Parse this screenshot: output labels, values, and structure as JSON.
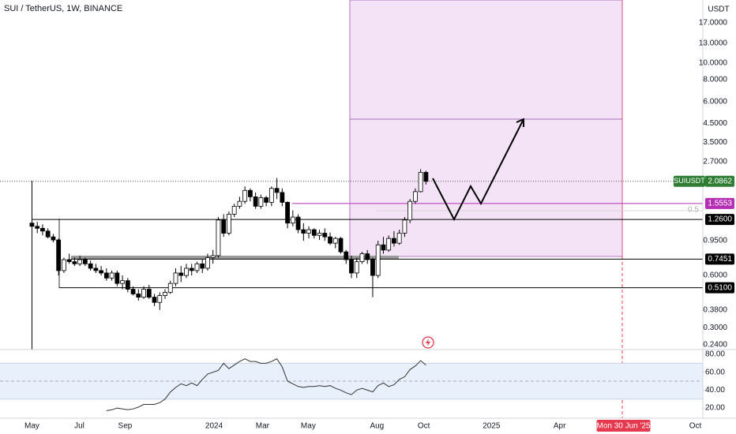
{
  "chart_data": {
    "type": "candlestick",
    "title": "SUI / TetherUS, 1W, BINANCE",
    "currency": "USDT",
    "log_scale": true,
    "up_color": "#ffffff",
    "down_color": "#000000",
    "ylim": [
      0.225,
      23.0
    ],
    "yticks": [
      {
        "value": 17,
        "label": "17.0000"
      },
      {
        "value": 13,
        "label": "13.0000"
      },
      {
        "value": 10,
        "label": "10.0000"
      },
      {
        "value": 8,
        "label": "8.0000"
      },
      {
        "value": 6,
        "label": "6.0000"
      },
      {
        "value": 4.5,
        "label": "4.5000"
      },
      {
        "value": 3.5,
        "label": "3.5000"
      },
      {
        "value": 2.7,
        "label": "2.7000"
      },
      {
        "value": 0.95,
        "label": "0.9500"
      },
      {
        "value": 0.6,
        "label": "0.6000"
      },
      {
        "value": 0.38,
        "label": "0.3800"
      },
      {
        "value": 0.3,
        "label": "0.3000"
      },
      {
        "value": 0.24,
        "label": "0.2400"
      }
    ],
    "xlim": [
      -6,
      126
    ],
    "xticks": [
      {
        "value": 0,
        "label": "May"
      },
      {
        "value": 8.9,
        "label": "Jul"
      },
      {
        "value": 17.5,
        "label": "Sep"
      },
      {
        "value": 34.2,
        "label": "2024"
      },
      {
        "value": 43.3,
        "label": "Mar"
      },
      {
        "value": 51.9,
        "label": "May"
      },
      {
        "value": 64.8,
        "label": "Aug"
      },
      {
        "value": 73.6,
        "label": "Oct"
      },
      {
        "value": 86.3,
        "label": "2025"
      },
      {
        "value": 99.1,
        "label": "Apr"
      },
      {
        "value": 111.1,
        "label": "Mon 30 Jun '25"
      },
      {
        "value": 124.6,
        "label": "Oct"
      }
    ],
    "candles": [
      {
        "o": 1.2,
        "h": 2.1,
        "l": 0.225,
        "c": 1.15
      },
      {
        "o": 1.15,
        "h": 1.22,
        "l": 1.05,
        "c": 1.12
      },
      {
        "o": 1.12,
        "h": 1.18,
        "l": 1.02,
        "c": 1.08
      },
      {
        "o": 1.08,
        "h": 1.12,
        "l": 0.98,
        "c": 1.0
      },
      {
        "o": 1.0,
        "h": 1.04,
        "l": 0.93,
        "c": 0.96
      },
      {
        "o": 0.96,
        "h": 0.98,
        "l": 0.6,
        "c": 0.64
      },
      {
        "o": 0.64,
        "h": 0.76,
        "l": 0.62,
        "c": 0.74
      },
      {
        "o": 0.74,
        "h": 0.8,
        "l": 0.7,
        "c": 0.72
      },
      {
        "o": 0.72,
        "h": 0.76,
        "l": 0.68,
        "c": 0.7
      },
      {
        "o": 0.7,
        "h": 0.78,
        "l": 0.68,
        "c": 0.74
      },
      {
        "o": 0.74,
        "h": 0.76,
        "l": 0.68,
        "c": 0.7
      },
      {
        "o": 0.7,
        "h": 0.73,
        "l": 0.64,
        "c": 0.66
      },
      {
        "o": 0.66,
        "h": 0.7,
        "l": 0.62,
        "c": 0.64
      },
      {
        "o": 0.64,
        "h": 0.68,
        "l": 0.6,
        "c": 0.62
      },
      {
        "o": 0.62,
        "h": 0.66,
        "l": 0.56,
        "c": 0.58
      },
      {
        "o": 0.58,
        "h": 0.64,
        "l": 0.56,
        "c": 0.62
      },
      {
        "o": 0.62,
        "h": 0.64,
        "l": 0.52,
        "c": 0.54
      },
      {
        "o": 0.54,
        "h": 0.6,
        "l": 0.5,
        "c": 0.56
      },
      {
        "o": 0.56,
        "h": 0.58,
        "l": 0.48,
        "c": 0.5
      },
      {
        "o": 0.5,
        "h": 0.52,
        "l": 0.46,
        "c": 0.47
      },
      {
        "o": 0.47,
        "h": 0.5,
        "l": 0.43,
        "c": 0.45
      },
      {
        "o": 0.45,
        "h": 0.52,
        "l": 0.44,
        "c": 0.5
      },
      {
        "o": 0.5,
        "h": 0.53,
        "l": 0.44,
        "c": 0.45
      },
      {
        "o": 0.45,
        "h": 0.47,
        "l": 0.4,
        "c": 0.42
      },
      {
        "o": 0.42,
        "h": 0.48,
        "l": 0.38,
        "c": 0.46
      },
      {
        "o": 0.46,
        "h": 0.5,
        "l": 0.44,
        "c": 0.48
      },
      {
        "o": 0.48,
        "h": 0.56,
        "l": 0.47,
        "c": 0.54
      },
      {
        "o": 0.54,
        "h": 0.66,
        "l": 0.52,
        "c": 0.62
      },
      {
        "o": 0.62,
        "h": 0.68,
        "l": 0.55,
        "c": 0.6
      },
      {
        "o": 0.6,
        "h": 0.7,
        "l": 0.58,
        "c": 0.66
      },
      {
        "o": 0.66,
        "h": 0.7,
        "l": 0.6,
        "c": 0.64
      },
      {
        "o": 0.64,
        "h": 0.72,
        "l": 0.62,
        "c": 0.7
      },
      {
        "o": 0.7,
        "h": 0.74,
        "l": 0.62,
        "c": 0.66
      },
      {
        "o": 0.66,
        "h": 0.8,
        "l": 0.64,
        "c": 0.76
      },
      {
        "o": 0.76,
        "h": 0.84,
        "l": 0.7,
        "c": 0.78
      },
      {
        "o": 0.78,
        "h": 1.3,
        "l": 0.76,
        "c": 1.25
      },
      {
        "o": 1.25,
        "h": 1.35,
        "l": 1.0,
        "c": 1.05
      },
      {
        "o": 1.05,
        "h": 1.4,
        "l": 1.02,
        "c": 1.35
      },
      {
        "o": 1.35,
        "h": 1.55,
        "l": 1.3,
        "c": 1.5
      },
      {
        "o": 1.5,
        "h": 1.7,
        "l": 1.45,
        "c": 1.6
      },
      {
        "o": 1.6,
        "h": 1.95,
        "l": 1.55,
        "c": 1.85
      },
      {
        "o": 1.85,
        "h": 1.9,
        "l": 1.6,
        "c": 1.7
      },
      {
        "o": 1.7,
        "h": 1.8,
        "l": 1.45,
        "c": 1.5
      },
      {
        "o": 1.5,
        "h": 1.75,
        "l": 1.45,
        "c": 1.68
      },
      {
        "o": 1.68,
        "h": 1.72,
        "l": 1.5,
        "c": 1.58
      },
      {
        "o": 1.58,
        "h": 1.95,
        "l": 1.5,
        "c": 1.9
      },
      {
        "o": 1.9,
        "h": 2.18,
        "l": 1.65,
        "c": 1.8
      },
      {
        "o": 1.8,
        "h": 1.9,
        "l": 1.5,
        "c": 1.58
      },
      {
        "o": 1.58,
        "h": 1.6,
        "l": 1.12,
        "c": 1.2
      },
      {
        "o": 1.2,
        "h": 1.42,
        "l": 1.15,
        "c": 1.3
      },
      {
        "o": 1.3,
        "h": 1.35,
        "l": 1.05,
        "c": 1.1
      },
      {
        "o": 1.1,
        "h": 1.2,
        "l": 0.95,
        "c": 1.05
      },
      {
        "o": 1.05,
        "h": 1.15,
        "l": 0.98,
        "c": 1.1
      },
      {
        "o": 1.1,
        "h": 1.12,
        "l": 0.98,
        "c": 1.02
      },
      {
        "o": 1.02,
        "h": 1.1,
        "l": 0.96,
        "c": 1.05
      },
      {
        "o": 1.05,
        "h": 1.12,
        "l": 0.95,
        "c": 1.0
      },
      {
        "o": 1.0,
        "h": 1.06,
        "l": 0.9,
        "c": 0.92
      },
      {
        "o": 0.92,
        "h": 1.0,
        "l": 0.86,
        "c": 0.98
      },
      {
        "o": 0.98,
        "h": 1.0,
        "l": 0.8,
        "c": 0.82
      },
      {
        "o": 0.82,
        "h": 0.84,
        "l": 0.7,
        "c": 0.74
      },
      {
        "o": 0.74,
        "h": 0.78,
        "l": 0.58,
        "c": 0.62
      },
      {
        "o": 0.62,
        "h": 0.76,
        "l": 0.58,
        "c": 0.72
      },
      {
        "o": 0.72,
        "h": 0.82,
        "l": 0.7,
        "c": 0.8
      },
      {
        "o": 0.8,
        "h": 0.84,
        "l": 0.7,
        "c": 0.74
      },
      {
        "o": 0.74,
        "h": 0.76,
        "l": 0.45,
        "c": 0.6
      },
      {
        "o": 0.6,
        "h": 0.95,
        "l": 0.58,
        "c": 0.9
      },
      {
        "o": 0.9,
        "h": 1.0,
        "l": 0.8,
        "c": 0.84
      },
      {
        "o": 0.84,
        "h": 1.02,
        "l": 0.82,
        "c": 0.98
      },
      {
        "o": 0.98,
        "h": 1.08,
        "l": 0.88,
        "c": 0.92
      },
      {
        "o": 0.92,
        "h": 1.1,
        "l": 0.9,
        "c": 1.05
      },
      {
        "o": 1.05,
        "h": 1.3,
        "l": 1.0,
        "c": 1.25
      },
      {
        "o": 1.25,
        "h": 1.65,
        "l": 1.2,
        "c": 1.6
      },
      {
        "o": 1.6,
        "h": 1.9,
        "l": 1.55,
        "c": 1.82
      },
      {
        "o": 1.82,
        "h": 2.45,
        "l": 1.8,
        "c": 2.35
      },
      {
        "o": 2.35,
        "h": 2.4,
        "l": 2.0,
        "c": 2.0862
      }
    ],
    "last_price": {
      "symbol": "SUIUSDT",
      "value": 2.0862,
      "label": "2.0862",
      "color": "#2e7d32"
    },
    "price_levels": [
      {
        "value": 1.5553,
        "label": "1.5553",
        "color": "#b52fb5"
      },
      {
        "value": 1.26,
        "label": "1.2600",
        "color": "#000000"
      },
      {
        "value": 0.7451,
        "label": "0.7451",
        "color": "#000000"
      },
      {
        "value": 0.51,
        "label": "0.5100",
        "color": "#000000"
      }
    ],
    "annotations": [
      "0.5"
    ],
    "rsi": {
      "color": "#333333",
      "band": [
        30,
        70
      ],
      "midline": 50,
      "ylim": [
        8.6,
        85.3
      ],
      "yticks": [
        {
          "value": 80,
          "label": "80.00"
        },
        {
          "value": 60,
          "label": "60.00"
        },
        {
          "value": 40,
          "label": "40.00"
        },
        {
          "value": 20,
          "label": "20.00"
        }
      ],
      "values": [
        null,
        null,
        null,
        null,
        null,
        null,
        null,
        null,
        null,
        null,
        null,
        null,
        null,
        null,
        17,
        18,
        20,
        19,
        18,
        19,
        21,
        24,
        24,
        24,
        26,
        30,
        38,
        43,
        47,
        45,
        48,
        45,
        52,
        58,
        60,
        62,
        70,
        64,
        68,
        72,
        75,
        72,
        72,
        70,
        70,
        72,
        75,
        66,
        50,
        47,
        44,
        43,
        44,
        44,
        45,
        44,
        45,
        42,
        40,
        37,
        35,
        40,
        42,
        40,
        38,
        45,
        48,
        44,
        46,
        52,
        55,
        63,
        67,
        73,
        68
      ]
    }
  }
}
